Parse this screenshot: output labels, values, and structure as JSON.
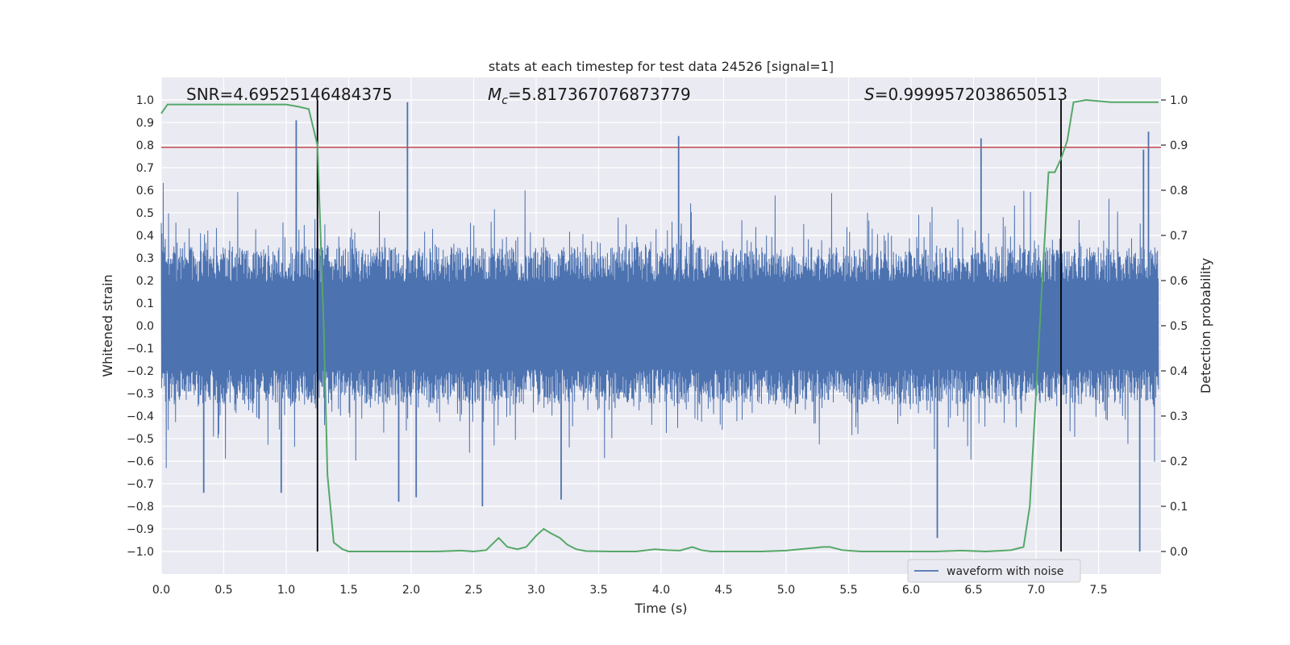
{
  "chart_data": {
    "type": "line",
    "title": "stats at each timestep for test data 24526 [signal=1]",
    "xlabel": "Time (s)",
    "ylabel": "Whitened strain",
    "y2label": "Detection probability",
    "xlim": [
      0.0,
      8.0
    ],
    "ylim": [
      -1.1,
      1.1
    ],
    "y2lim": [
      -0.05,
      1.05
    ],
    "x_ticks": [
      "0.0",
      "0.5",
      "1.0",
      "1.5",
      "2.0",
      "2.5",
      "3.0",
      "3.5",
      "4.0",
      "4.5",
      "5.0",
      "5.5",
      "6.0",
      "6.5",
      "7.0",
      "7.5"
    ],
    "y_ticks": [
      "1.0",
      "0.9",
      "0.8",
      "0.7",
      "0.6",
      "0.5",
      "0.4",
      "0.3",
      "0.2",
      "0.1",
      "0.0",
      "−0.1",
      "−0.2",
      "−0.3",
      "−0.4",
      "−0.5",
      "−0.6",
      "−0.7",
      "−0.8",
      "−0.9",
      "−1.0"
    ],
    "y2_ticks": [
      "1.0",
      "0.9",
      "0.8",
      "0.7",
      "0.6",
      "0.5",
      "0.4",
      "0.3",
      "0.2",
      "0.1",
      "0.0"
    ],
    "grid": true,
    "legend": {
      "label": "waveform with noise",
      "location": "lower-right"
    },
    "annotations": {
      "snr": "SNR=4.69525146484375",
      "mc_symbol": "M",
      "mc_sub": "c",
      "mc_value": "=5.817367076873779",
      "s_symbol": "S",
      "s_value": "=0.9999572038650513"
    },
    "threshold": {
      "y": 0.79,
      "color": "#c44e52"
    },
    "vlines": [
      1.25,
      7.2
    ],
    "waveform": {
      "color": "#4c72b0",
      "typical_band": [
        -0.35,
        0.35
      ],
      "peaks": [
        {
          "x": 1.08,
          "y": 0.91
        },
        {
          "x": 1.97,
          "y": 0.99
        },
        {
          "x": 4.14,
          "y": 0.84
        },
        {
          "x": 6.56,
          "y": 0.83
        },
        {
          "x": 7.9,
          "y": 0.86
        },
        {
          "x": 7.86,
          "y": 0.78
        }
      ],
      "troughs": [
        {
          "x": 0.34,
          "y": -0.74
        },
        {
          "x": 0.96,
          "y": -0.74
        },
        {
          "x": 1.9,
          "y": -0.78
        },
        {
          "x": 2.04,
          "y": -0.76
        },
        {
          "x": 2.57,
          "y": -0.8
        },
        {
          "x": 3.2,
          "y": -0.77
        },
        {
          "x": 6.21,
          "y": -0.94
        },
        {
          "x": 7.83,
          "y": -1.0
        }
      ]
    },
    "detection_probability": {
      "color": "#55a868",
      "x": [
        0.0,
        0.05,
        0.1,
        0.3,
        0.5,
        0.7,
        0.9,
        1.0,
        1.1,
        1.18,
        1.25,
        1.3,
        1.33,
        1.38,
        1.45,
        1.5,
        1.6,
        1.8,
        2.0,
        2.2,
        2.4,
        2.5,
        2.6,
        2.7,
        2.77,
        2.85,
        2.92,
        3.0,
        3.06,
        3.12,
        3.19,
        3.25,
        3.32,
        3.4,
        3.6,
        3.8,
        3.95,
        4.05,
        4.15,
        4.25,
        4.32,
        4.4,
        4.6,
        4.8,
        5.0,
        5.15,
        5.3,
        5.35,
        5.45,
        5.6,
        5.8,
        6.0,
        6.2,
        6.4,
        6.6,
        6.8,
        6.9,
        6.95,
        7.0,
        7.05,
        7.1,
        7.15,
        7.2,
        7.25,
        7.3,
        7.4,
        7.6,
        7.8,
        7.98
      ],
      "y": [
        0.97,
        0.99,
        0.99,
        0.99,
        0.99,
        0.99,
        0.99,
        0.99,
        0.985,
        0.98,
        0.9,
        0.5,
        0.17,
        0.02,
        0.005,
        0.0,
        0.0,
        0.0,
        0.0,
        0.0,
        0.002,
        0.0,
        0.003,
        0.03,
        0.01,
        0.005,
        0.01,
        0.035,
        0.05,
        0.04,
        0.03,
        0.015,
        0.005,
        0.001,
        0.0,
        0.0,
        0.005,
        0.003,
        0.002,
        0.01,
        0.003,
        0.0,
        0.0,
        0.0,
        0.002,
        0.006,
        0.01,
        0.01,
        0.003,
        0.0,
        0.0,
        0.0,
        0.0,
        0.002,
        0.0,
        0.003,
        0.01,
        0.1,
        0.35,
        0.6,
        0.84,
        0.84,
        0.87,
        0.91,
        0.995,
        1.0,
        0.995,
        0.995,
        0.995
      ]
    }
  }
}
